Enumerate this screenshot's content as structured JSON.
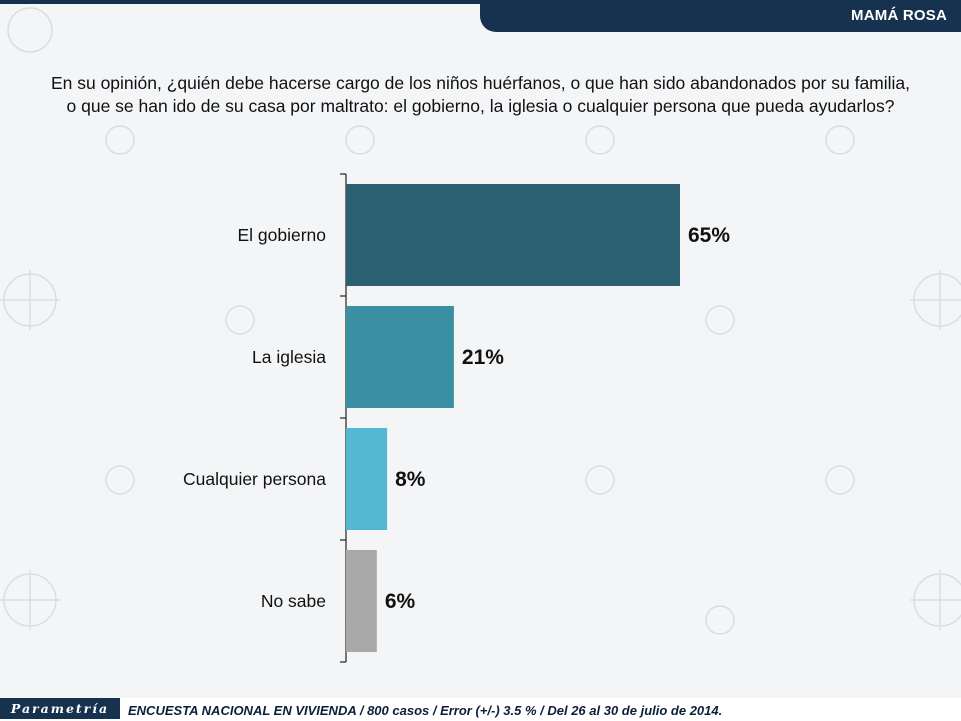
{
  "header": {
    "title": "MAMÁ ROSA"
  },
  "question": {
    "line1": "En su opinión, ¿quién debe hacerse cargo de los niños huérfanos, o que han sido abandonados por su familia,",
    "line2": "o que se han ido de su casa por maltrato: el gobierno, la iglesia o cualquier persona que pueda ayudarlos?"
  },
  "chart_data": {
    "type": "bar",
    "orientation": "horizontal",
    "categories": [
      "El gobierno",
      "La iglesia",
      "Cualquier persona",
      "No sabe"
    ],
    "values": [
      65,
      21,
      8,
      6
    ],
    "value_labels": [
      "65%",
      "21%",
      "8%",
      "6%"
    ],
    "bar_colors": [
      "#2b6070",
      "#3b8fa3",
      "#55b8d1",
      "#a8a8a8"
    ],
    "xlim": [
      0,
      100
    ],
    "grid": false
  },
  "footer": {
    "logo": "Parametría",
    "source": "ENCUESTA NACIONAL EN VIVIENDA / 800 casos / Error (+/-) 3.5 % / Del 26 al 30 de julio de 2014."
  }
}
